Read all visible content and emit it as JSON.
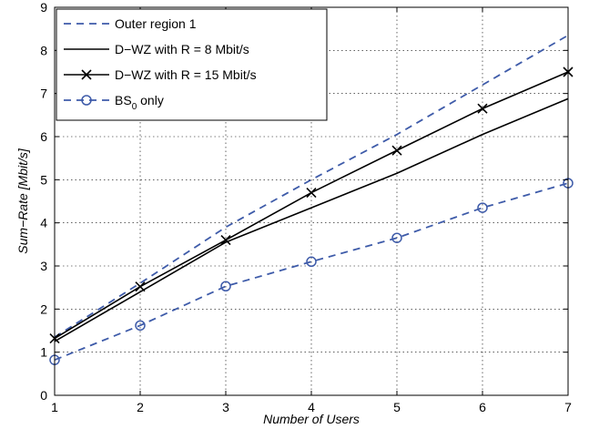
{
  "chart_data": {
    "type": "line",
    "title": "",
    "xlabel": "Number of Users",
    "ylabel": "Sum−Rate [Mbit/s]",
    "xlim": [
      1,
      7
    ],
    "ylim": [
      0,
      9
    ],
    "grid": true,
    "x": [
      1,
      2,
      3,
      4,
      5,
      6,
      7
    ],
    "x_ticks": [
      "1",
      "2",
      "3",
      "4",
      "5",
      "6",
      "7"
    ],
    "y_ticks": [
      "0",
      "1",
      "2",
      "3",
      "4",
      "5",
      "6",
      "7",
      "8",
      "9"
    ],
    "legend_position": "top-left",
    "series": [
      {
        "name": "Outer region 1",
        "values": [
          1.35,
          2.6,
          3.9,
          5.0,
          6.05,
          7.2,
          8.35
        ],
        "color": "#3e5ba9",
        "line_style": "dashed",
        "marker": "none"
      },
      {
        "name": "D−WZ with R = 8 Mbit/s",
        "values": [
          1.25,
          2.4,
          3.55,
          4.35,
          5.15,
          6.05,
          6.88
        ],
        "color": "#000000",
        "line_style": "solid",
        "marker": "none"
      },
      {
        "name": "D−WZ with R = 15 Mbit/s",
        "values": [
          1.32,
          2.52,
          3.6,
          4.7,
          5.68,
          6.65,
          7.5
        ],
        "color": "#000000",
        "line_style": "solid",
        "marker": "x"
      },
      {
        "name": "BS",
        "name_subscript": "0",
        "name_suffix": " only",
        "values": [
          0.82,
          1.62,
          2.53,
          3.1,
          3.65,
          4.35,
          4.92
        ],
        "color": "#3e5ba9",
        "line_style": "dashed",
        "marker": "circle"
      }
    ]
  }
}
